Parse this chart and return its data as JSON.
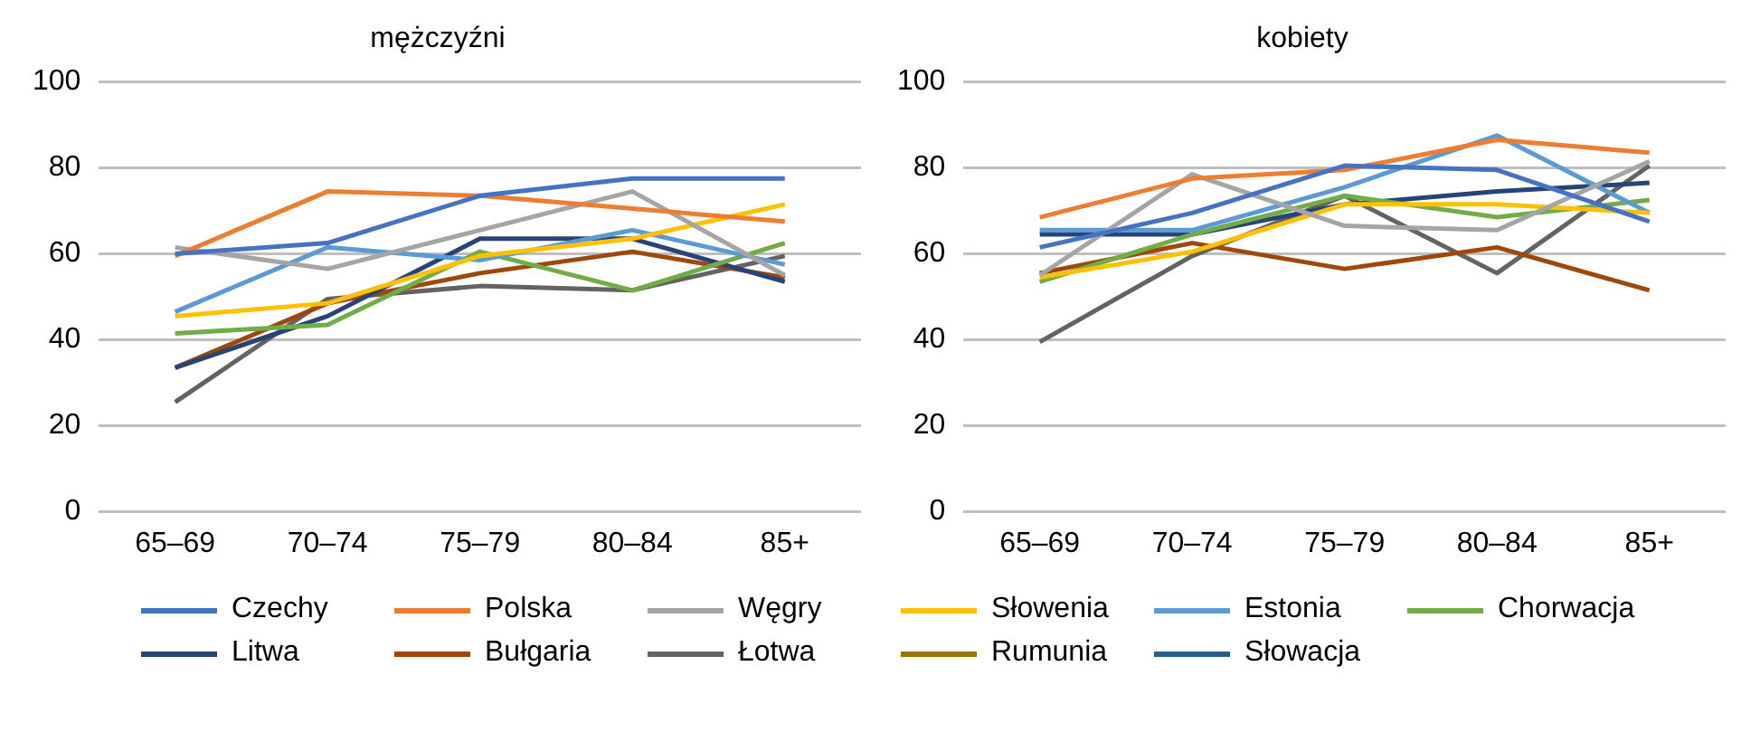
{
  "chart_data": [
    {
      "type": "line",
      "title": "mężczyźni",
      "categories": [
        "65–69",
        "70–74",
        "75–79",
        "80–84",
        "85+"
      ],
      "ylim": [
        0,
        100
      ],
      "yticks": [
        0,
        20,
        40,
        60,
        80,
        100
      ],
      "grid": "y",
      "legend": "bottom",
      "marker": "none",
      "series": [
        {
          "name": "Czechy",
          "color": "#4472c4",
          "values": [
            60,
            62.5,
            73.5,
            77.5,
            77.5
          ]
        },
        {
          "name": "Polska",
          "color": "#ed7d31",
          "values": [
            59.5,
            74.5,
            73.5,
            70.5,
            67.5
          ]
        },
        {
          "name": "Węgry",
          "color": "#a5a5a5",
          "values": [
            61.5,
            56.5,
            65.5,
            74.5,
            55
          ]
        },
        {
          "name": "Słowenia",
          "color": "#ffc000",
          "values": [
            45.5,
            48.5,
            59.5,
            63.5,
            71.5
          ]
        },
        {
          "name": "Estonia",
          "color": "#5b9bd5",
          "values": [
            46.5,
            61.5,
            58.5,
            65.5,
            57.5
          ]
        },
        {
          "name": "Chorwacja",
          "color": "#70ad47",
          "values": [
            41.5,
            43.5,
            60.5,
            51.5,
            62.5
          ]
        },
        {
          "name": "Litwa",
          "color": "#264478",
          "values": [
            33.5,
            45.5,
            63.5,
            63.5,
            53.5
          ]
        },
        {
          "name": "Bułgaria",
          "color": "#9e480e",
          "values": [
            33.5,
            48.5,
            55.5,
            60.5,
            54.5
          ]
        },
        {
          "name": "Łotwa",
          "color": "#636363",
          "values": [
            25.5,
            49.5,
            52.5,
            51.5,
            59.5
          ]
        },
        {
          "name": "Rumunia",
          "color": "#997300",
          "values": [
            null,
            null,
            null,
            null,
            null
          ]
        },
        {
          "name": "Słowacja",
          "color": "#255e91",
          "values": [
            null,
            null,
            null,
            null,
            null
          ]
        }
      ]
    },
    {
      "type": "line",
      "title": "kobiety",
      "categories": [
        "65–69",
        "70–74",
        "75–79",
        "80–84",
        "85+"
      ],
      "ylim": [
        0,
        100
      ],
      "yticks": [
        0,
        20,
        40,
        60,
        80,
        100
      ],
      "grid": "y",
      "legend": "bottom",
      "marker": "none",
      "series": [
        {
          "name": "Czechy",
          "color": "#4472c4",
          "values": [
            61.5,
            69.5,
            80.5,
            79.5,
            67.5
          ]
        },
        {
          "name": "Polska",
          "color": "#ed7d31",
          "values": [
            68.5,
            77.5,
            79.5,
            86.5,
            83.5
          ]
        },
        {
          "name": "Węgry",
          "color": "#a5a5a5",
          "values": [
            55,
            78.5,
            66.5,
            65.5,
            81.5
          ]
        },
        {
          "name": "Słowenia",
          "color": "#ffc000",
          "values": [
            54.5,
            60.5,
            71.5,
            71.5,
            69.5
          ]
        },
        {
          "name": "Estonia",
          "color": "#5b9bd5",
          "values": [
            65.5,
            65.5,
            75.5,
            87.5,
            69.5
          ]
        },
        {
          "name": "Chorwacja",
          "color": "#70ad47",
          "values": [
            53.5,
            64.5,
            73.5,
            68.5,
            72.5
          ]
        },
        {
          "name": "Litwa",
          "color": "#264478",
          "values": [
            64.5,
            64.5,
            71.5,
            74.5,
            76.5
          ]
        },
        {
          "name": "Bułgaria",
          "color": "#9e480e",
          "values": [
            55.5,
            62.5,
            56.5,
            61.5,
            51.5
          ]
        },
        {
          "name": "Łotwa",
          "color": "#636363",
          "values": [
            39.5,
            59.5,
            73.5,
            55.5,
            80.5
          ]
        }
      ]
    }
  ]
}
